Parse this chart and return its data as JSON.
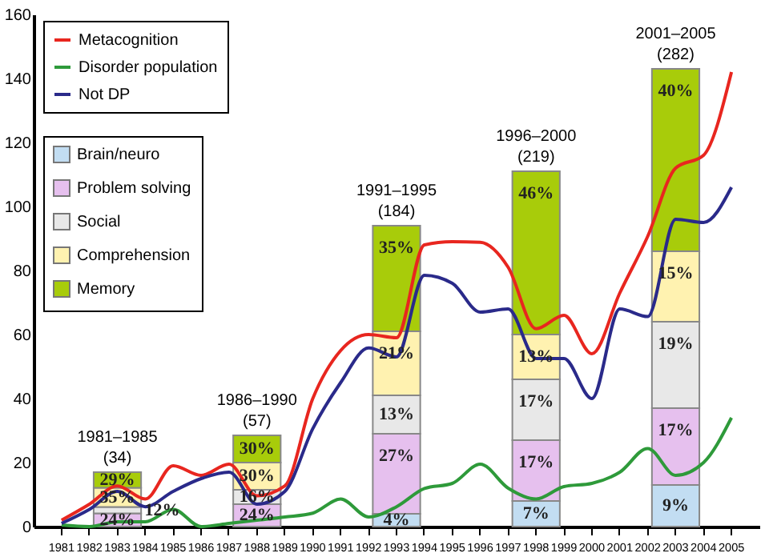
{
  "chart_data": {
    "type": "bar",
    "stacked": true,
    "legend": "top left",
    "grid": false,
    "categories": [
      "1981",
      "1982",
      "1983",
      "1984",
      "1985",
      "1986",
      "1987",
      "1988",
      "1989",
      "1990",
      "1991",
      "1992",
      "1993",
      "1994",
      "1995",
      "1996",
      "1997",
      "1998",
      "1999",
      "2000",
      "2001",
      "2002",
      "2003",
      "2004",
      "2005"
    ],
    "ylim": [
      0,
      160
    ],
    "yticks": [
      0,
      20,
      40,
      60,
      80,
      100,
      120,
      140,
      160
    ],
    "series": [
      {
        "name": "Brain/neuro",
        "color": "#c2ddf2",
        "values": [
          null,
          null,
          null,
          null,
          null,
          null,
          null,
          null,
          null,
          null,
          null,
          null,
          4,
          null,
          null,
          null,
          null,
          8,
          null,
          null,
          null,
          null,
          13,
          null,
          null
        ]
      },
      {
        "name": "Problem solving",
        "color": "#e6c0ee",
        "values": [
          null,
          null,
          4.1,
          null,
          null,
          null,
          null,
          7,
          null,
          null,
          null,
          null,
          25,
          null,
          null,
          null,
          null,
          19,
          null,
          null,
          null,
          null,
          24,
          null,
          null
        ]
      },
      {
        "name": "Social",
        "color": "#e8e8e8",
        "values": [
          null,
          null,
          2,
          null,
          null,
          null,
          null,
          4.5,
          null,
          null,
          null,
          null,
          12,
          null,
          null,
          null,
          null,
          19,
          null,
          null,
          null,
          null,
          27,
          null,
          null
        ]
      },
      {
        "name": "Comprehension",
        "color": "#fff2b0",
        "values": [
          null,
          null,
          6,
          null,
          null,
          null,
          null,
          8.5,
          null,
          null,
          null,
          null,
          20,
          null,
          null,
          null,
          null,
          14,
          null,
          null,
          null,
          null,
          22,
          null,
          null
        ]
      },
      {
        "name": "Memory",
        "color": "#a8cc0a",
        "values": [
          null,
          null,
          4.9,
          null,
          null,
          null,
          null,
          8.5,
          null,
          null,
          null,
          null,
          33,
          null,
          null,
          null,
          null,
          51,
          null,
          null,
          null,
          null,
          57,
          null,
          null
        ]
      },
      {
        "name": "Metacognition",
        "type": "line",
        "color": "#e8261f",
        "values": [
          2,
          7,
          12.7,
          8.6,
          19,
          16,
          19.5,
          9.6,
          12.7,
          40,
          55,
          60,
          59,
          88,
          89,
          88.8,
          81,
          61.8,
          66,
          54,
          73,
          90.7,
          112,
          116,
          142
        ]
      },
      {
        "name": "Disorder population",
        "type": "line",
        "color": "#2e9a3a",
        "values": [
          0.5,
          0,
          1.5,
          1.5,
          5.4,
          0,
          1,
          2,
          3,
          4.2,
          8.6,
          3,
          6.2,
          11.9,
          13.5,
          19.5,
          12,
          8.6,
          12.5,
          13.5,
          17,
          24.4,
          16,
          20,
          34
        ]
      },
      {
        "name": "Not DP",
        "type": "line",
        "color": "#2a2a8a",
        "values": [
          1,
          5.4,
          11,
          6.2,
          11,
          15,
          17,
          7,
          11,
          30.6,
          45,
          55.8,
          53,
          78.5,
          76,
          67,
          68,
          52.5,
          52.5,
          40,
          68,
          65.6,
          96,
          95,
          106
        ]
      }
    ],
    "annotations": [
      {
        "text": "24%",
        "x": "1983",
        "y": 4.1
      },
      {
        "text": "12%",
        "x": "1983",
        "y": 6.1
      },
      {
        "text": "35%",
        "x": "1983",
        "y": 12.1
      },
      {
        "text": "29%",
        "x": "1983",
        "y": 17
      },
      {
        "text": "24%",
        "x": "1988",
        "y": 7
      },
      {
        "text": "16%",
        "x": "1988",
        "y": 11.5
      },
      {
        "text": "30%",
        "x": "1988",
        "y": 20
      },
      {
        "text": "30%",
        "x": "1988",
        "y": 28.5
      },
      {
        "text": "4%",
        "x": "1993",
        "y": 4
      },
      {
        "text": "27%",
        "x": "1993",
        "y": 29
      },
      {
        "text": "13%",
        "x": "1993",
        "y": 41
      },
      {
        "text": "21%",
        "x": "1993",
        "y": 61
      },
      {
        "text": "35%",
        "x": "1993",
        "y": 94
      },
      {
        "text": "7%",
        "x": "1998",
        "y": 8
      },
      {
        "text": "17%",
        "x": "1998",
        "y": 27
      },
      {
        "text": "17%",
        "x": "1998",
        "y": 46
      },
      {
        "text": "13%",
        "x": "1998",
        "y": 60
      },
      {
        "text": "46%",
        "x": "1998",
        "y": 111
      },
      {
        "text": "9%",
        "x": "2003",
        "y": 13
      },
      {
        "text": "17%",
        "x": "2003",
        "y": 37
      },
      {
        "text": "19%",
        "x": "2003",
        "y": 64
      },
      {
        "text": "15%",
        "x": "2003",
        "y": 86
      },
      {
        "text": "40%",
        "x": "2003",
        "y": 143
      },
      {
        "text": "1981–1985",
        "x": "1983",
        "y": 17
      },
      {
        "text": "(34)",
        "x": "1983",
        "y": 17
      },
      {
        "text": "1986–1990",
        "x": "1988",
        "y": 28.5
      },
      {
        "text": "(57)",
        "x": "1988",
        "y": 28.5
      },
      {
        "text": "1991–1995",
        "x": "1993",
        "y": 94
      },
      {
        "text": "(184)",
        "x": "1993",
        "y": 94
      },
      {
        "text": "1996–2000",
        "x": "1998",
        "y": 111
      },
      {
        "text": "(219)",
        "x": "1998",
        "y": 111
      },
      {
        "text": "2001–2005",
        "x": "2003",
        "y": 143
      },
      {
        "text": "(282)",
        "x": "2003",
        "y": 143
      }
    ]
  }
}
